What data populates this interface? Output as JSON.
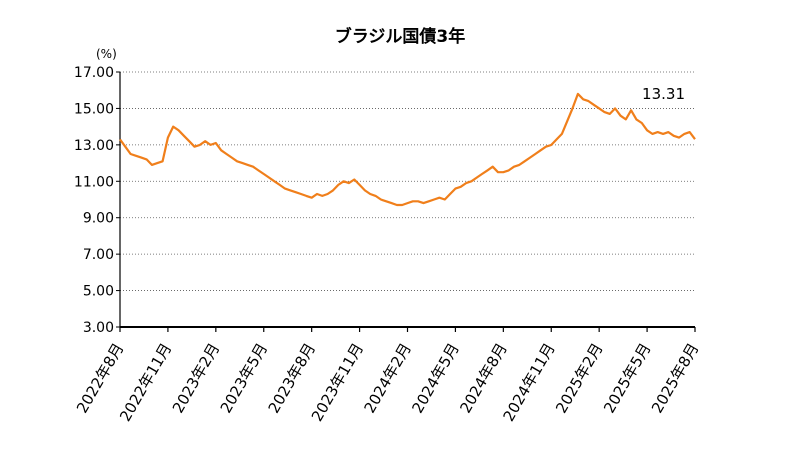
{
  "chart_data": {
    "type": "line",
    "title": "ブラジル国債3年",
    "y_unit_label": "(%)",
    "categories": [
      "2022年8月",
      null,
      null,
      null,
      null,
      null,
      null,
      null,
      null,
      "2022年11月",
      null,
      null,
      null,
      null,
      null,
      null,
      null,
      null,
      "2023年2月",
      null,
      null,
      null,
      null,
      null,
      null,
      null,
      null,
      "2023年5月",
      null,
      null,
      null,
      null,
      null,
      null,
      null,
      null,
      "2023年8月",
      null,
      null,
      null,
      null,
      null,
      null,
      null,
      null,
      "2023年11月",
      null,
      null,
      null,
      null,
      null,
      null,
      null,
      null,
      "2024年2月",
      null,
      null,
      null,
      null,
      null,
      null,
      null,
      null,
      "2024年5月",
      null,
      null,
      null,
      null,
      null,
      null,
      null,
      null,
      "2024年8月",
      null,
      null,
      null,
      null,
      null,
      null,
      null,
      null,
      "2024年11月",
      null,
      null,
      null,
      null,
      null,
      null,
      null,
      null,
      "2025年2月",
      null,
      null,
      null,
      null,
      null,
      null,
      null,
      null,
      "2025年5月",
      null,
      null,
      null,
      null,
      null,
      null,
      null,
      null,
      "2025年8月"
    ],
    "series": [
      {
        "color": "#f07f1b",
        "values": [
          13.3,
          12.9,
          12.5,
          12.4,
          12.3,
          12.2,
          11.9,
          12.0,
          12.1,
          13.4,
          14.0,
          13.8,
          13.5,
          13.2,
          12.9,
          13.0,
          13.2,
          13.0,
          13.1,
          12.7,
          12.5,
          12.3,
          12.1,
          12.0,
          11.9,
          11.8,
          11.6,
          11.4,
          11.2,
          11.0,
          10.8,
          10.6,
          10.5,
          10.4,
          10.3,
          10.2,
          10.1,
          10.3,
          10.2,
          10.3,
          10.5,
          10.8,
          11.0,
          10.9,
          11.1,
          10.8,
          10.5,
          10.3,
          10.2,
          10.0,
          9.9,
          9.8,
          9.7,
          9.7,
          9.8,
          9.9,
          9.9,
          9.8,
          9.9,
          10.0,
          10.1,
          10.0,
          10.3,
          10.6,
          10.7,
          10.9,
          11.0,
          11.2,
          11.4,
          11.6,
          11.8,
          11.5,
          11.5,
          11.6,
          11.8,
          11.9,
          12.1,
          12.3,
          12.5,
          12.7,
          12.9,
          13.0,
          13.3,
          13.6,
          14.3,
          15.0,
          15.8,
          15.5,
          15.4,
          15.2,
          15.0,
          14.8,
          14.7,
          15.0,
          14.6,
          14.4,
          14.9,
          14.4,
          14.2,
          13.8,
          13.6,
          13.7,
          13.6,
          13.7,
          13.5,
          13.4,
          13.6,
          13.7,
          13.31
        ]
      }
    ],
    "ylim": [
      3,
      17
    ],
    "yticks": [
      {
        "value": 3,
        "label": "3.00"
      },
      {
        "value": 5,
        "label": "5.00"
      },
      {
        "value": 7,
        "label": "7.00"
      },
      {
        "value": 9,
        "label": "9.00"
      },
      {
        "value": 11,
        "label": "11.00"
      },
      {
        "value": 13,
        "label": "13.00"
      },
      {
        "value": 15,
        "label": "15.00"
      },
      {
        "value": 17,
        "label": "17.00"
      }
    ],
    "grid": true
  }
}
